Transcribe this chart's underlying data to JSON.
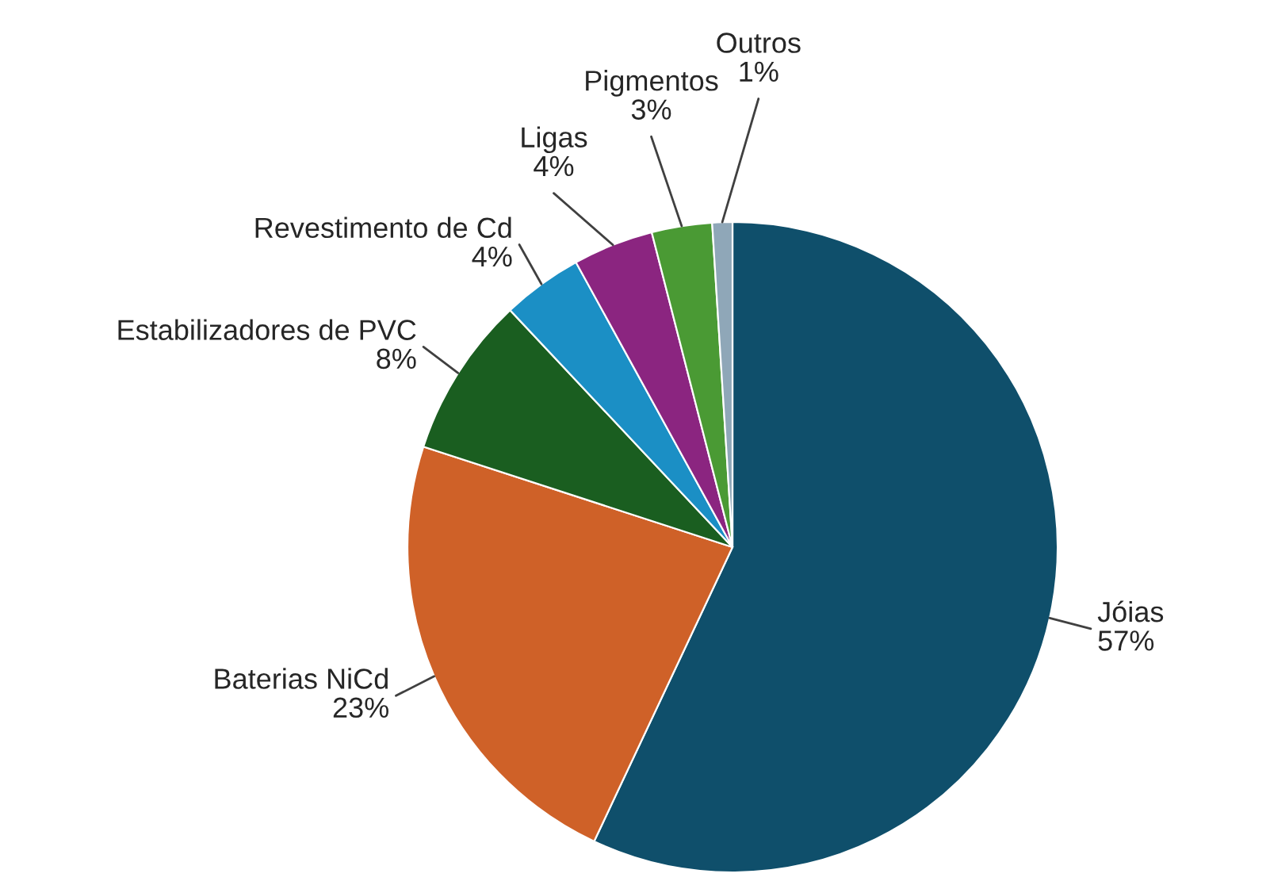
{
  "chart_data": {
    "type": "pie",
    "categories": [
      "Jóias",
      "Baterias NiCd",
      "Estabilizadores de PVC",
      "Revestimento de Cd",
      "Ligas",
      "Pigmentos",
      "Outros"
    ],
    "values": [
      57,
      23,
      8,
      4,
      4,
      3,
      1
    ],
    "colors": [
      "#0f4f6b",
      "#cf6128",
      "#1a5e20",
      "#1b8fc5",
      "#8b2580",
      "#4a9a34",
      "#8fa7b8"
    ],
    "value_labels": [
      "57%",
      "23%",
      "8%",
      "4%",
      "4%",
      "3%",
      "1%"
    ],
    "legend": false
  }
}
